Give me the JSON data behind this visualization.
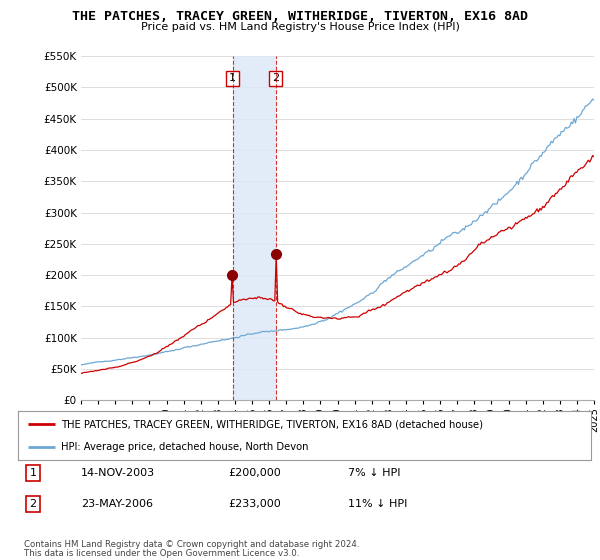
{
  "title": "THE PATCHES, TRACEY GREEN, WITHERIDGE, TIVERTON, EX16 8AD",
  "subtitle": "Price paid vs. HM Land Registry's House Price Index (HPI)",
  "legend_entry1": "THE PATCHES, TRACEY GREEN, WITHERIDGE, TIVERTON, EX16 8AD (detached house)",
  "legend_entry2": "HPI: Average price, detached house, North Devon",
  "footnote1": "Contains HM Land Registry data © Crown copyright and database right 2024.",
  "footnote2": "This data is licensed under the Open Government Licence v3.0.",
  "table": [
    {
      "num": "1",
      "date": "14-NOV-2003",
      "price": "£200,000",
      "hpi": "7% ↓ HPI"
    },
    {
      "num": "2",
      "date": "23-MAY-2006",
      "price": "£233,000",
      "hpi": "11% ↓ HPI"
    }
  ],
  "sale1_x": 2003.87,
  "sale1_y": 200000,
  "sale2_x": 2006.39,
  "sale2_y": 233000,
  "xmin": 1995,
  "xmax": 2025,
  "ymin": 0,
  "ymax": 550000,
  "yticks": [
    0,
    50000,
    100000,
    150000,
    200000,
    250000,
    300000,
    350000,
    400000,
    450000,
    500000,
    550000
  ],
  "ylabels": [
    "£0",
    "£50K",
    "£100K",
    "£150K",
    "£200K",
    "£250K",
    "£300K",
    "£350K",
    "£400K",
    "£450K",
    "£500K",
    "£550K"
  ],
  "hpi_color": "#6fa8d4",
  "price_color": "#cc0000",
  "sale_marker_color": "#8b0000",
  "vline1_color": "#cc0000",
  "vline2_color": "#cc0000",
  "highlight_fill": "#dce9f7",
  "background_color": "#ffffff",
  "grid_color": "#d0d0d0"
}
